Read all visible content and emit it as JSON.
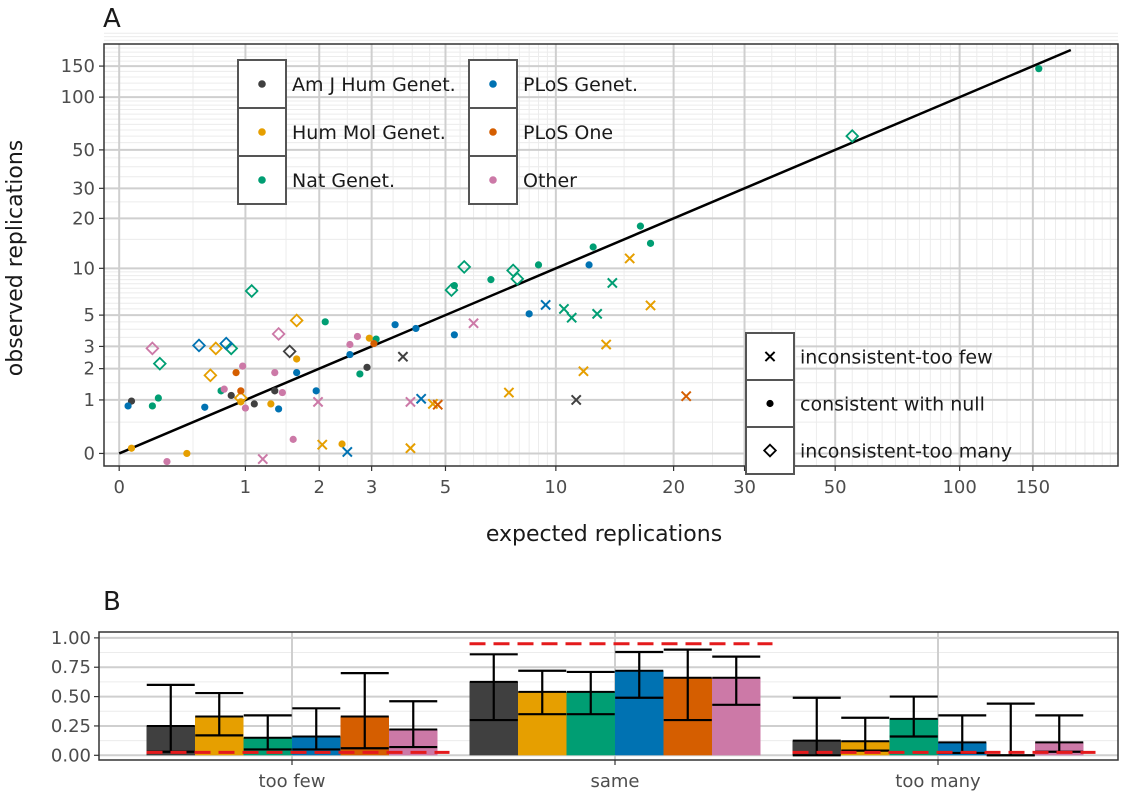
{
  "colors": {
    "Am J Hum Genet.": "#404040",
    "Hum Mol Genet.": "#E69F00",
    "Nat Genet.": "#009E73",
    "PLoS Genet.": "#0072B2",
    "PLoS One": "#D55E00",
    "Other": "#CC79A7",
    "reference": "#E41A1C"
  },
  "chart_data": [
    {
      "panel_label": "A",
      "type": "scatter",
      "xlabel": "expected replications",
      "ylabel": "observed replications",
      "scale": "log1p",
      "xticks": [
        0,
        1,
        2,
        3,
        5,
        10,
        20,
        30,
        50,
        100,
        150
      ],
      "yticks": [
        0,
        1,
        2,
        3,
        5,
        10,
        20,
        30,
        50,
        100,
        150
      ],
      "xlim": [
        -0.08,
        240
      ],
      "ylim": [
        -0.15,
        200
      ],
      "grid": true,
      "reference_line": "y = x",
      "color_legend": [
        "Am J Hum Genet.",
        "Hum Mol Genet.",
        "Nat Genet.",
        "PLoS Genet.",
        "PLoS One",
        "Other"
      ],
      "shape_legend": [
        "inconsistent-too few",
        "consistent with null",
        "inconsistent-too many"
      ],
      "points": [
        {
          "x": 0.07,
          "y": 0.97,
          "group": "Am J Hum Genet.",
          "shape": "consistent with null"
        },
        {
          "x": 0.85,
          "y": 1.12,
          "group": "Am J Hum Genet.",
          "shape": "consistent with null"
        },
        {
          "x": 1.1,
          "y": 0.9,
          "group": "Am J Hum Genet.",
          "shape": "consistent with null"
        },
        {
          "x": 1.35,
          "y": 1.25,
          "group": "Am J Hum Genet.",
          "shape": "consistent with null"
        },
        {
          "x": 2.9,
          "y": 2.05,
          "group": "Am J Hum Genet.",
          "shape": "consistent with null"
        },
        {
          "x": 1.55,
          "y": 2.75,
          "group": "Am J Hum Genet.",
          "shape": "inconsistent-too many"
        },
        {
          "x": 3.75,
          "y": 2.5,
          "group": "Am J Hum Genet.",
          "shape": "inconsistent-too few"
        },
        {
          "x": 11.3,
          "y": 1.0,
          "group": "Am J Hum Genet.",
          "shape": "inconsistent-too few"
        },
        {
          "x": 0.07,
          "y": 0.07,
          "group": "Hum Mol Genet.",
          "shape": "consistent with null"
        },
        {
          "x": 0.45,
          "y": 0.0,
          "group": "Hum Mol Genet.",
          "shape": "consistent with null"
        },
        {
          "x": 0.95,
          "y": 0.95,
          "group": "Hum Mol Genet.",
          "shape": "consistent with null"
        },
        {
          "x": 1.3,
          "y": 0.9,
          "group": "Hum Mol Genet.",
          "shape": "consistent with null"
        },
        {
          "x": 1.65,
          "y": 2.4,
          "group": "Hum Mol Genet.",
          "shape": "consistent with null"
        },
        {
          "x": 2.95,
          "y": 3.45,
          "group": "Hum Mol Genet.",
          "shape": "consistent with null"
        },
        {
          "x": 2.4,
          "y": 0.13,
          "group": "Hum Mol Genet.",
          "shape": "consistent with null"
        },
        {
          "x": 0.65,
          "y": 1.75,
          "group": "Hum Mol Genet.",
          "shape": "inconsistent-too many"
        },
        {
          "x": 0.7,
          "y": 2.9,
          "group": "Hum Mol Genet.",
          "shape": "inconsistent-too many"
        },
        {
          "x": 1.65,
          "y": 4.6,
          "group": "Hum Mol Genet.",
          "shape": "inconsistent-too many"
        },
        {
          "x": 0.95,
          "y": 1.05,
          "group": "Hum Mol Genet.",
          "shape": "inconsistent-too many"
        },
        {
          "x": 2.05,
          "y": 0.12,
          "group": "Hum Mol Genet.",
          "shape": "inconsistent-too few"
        },
        {
          "x": 3.95,
          "y": 0.07,
          "group": "Hum Mol Genet.",
          "shape": "inconsistent-too few"
        },
        {
          "x": 4.6,
          "y": 0.9,
          "group": "Hum Mol Genet.",
          "shape": "inconsistent-too few"
        },
        {
          "x": 7.5,
          "y": 1.2,
          "group": "Hum Mol Genet.",
          "shape": "inconsistent-too few"
        },
        {
          "x": 11.8,
          "y": 1.9,
          "group": "Hum Mol Genet.",
          "shape": "inconsistent-too few"
        },
        {
          "x": 13.5,
          "y": 3.1,
          "group": "Hum Mol Genet.",
          "shape": "inconsistent-too few"
        },
        {
          "x": 15.5,
          "y": 11.5,
          "group": "Hum Mol Genet.",
          "shape": "inconsistent-too few"
        },
        {
          "x": 17.5,
          "y": 5.8,
          "group": "Hum Mol Genet.",
          "shape": "inconsistent-too few"
        },
        {
          "x": 0.2,
          "y": 0.85,
          "group": "Nat Genet.",
          "shape": "consistent with null"
        },
        {
          "x": 0.24,
          "y": 1.05,
          "group": "Nat Genet.",
          "shape": "consistent with null"
        },
        {
          "x": 0.75,
          "y": 1.25,
          "group": "Nat Genet.",
          "shape": "consistent with null"
        },
        {
          "x": 2.1,
          "y": 4.5,
          "group": "Nat Genet.",
          "shape": "consistent with null"
        },
        {
          "x": 2.75,
          "y": 1.8,
          "group": "Nat Genet.",
          "shape": "consistent with null"
        },
        {
          "x": 3.1,
          "y": 3.4,
          "group": "Nat Genet.",
          "shape": "consistent with null"
        },
        {
          "x": 5.3,
          "y": 7.8,
          "group": "Nat Genet.",
          "shape": "consistent with null"
        },
        {
          "x": 6.7,
          "y": 8.5,
          "group": "Nat Genet.",
          "shape": "consistent with null"
        },
        {
          "x": 9.0,
          "y": 10.5,
          "group": "Nat Genet.",
          "shape": "consistent with null"
        },
        {
          "x": 12.5,
          "y": 13.5,
          "group": "Nat Genet.",
          "shape": "consistent with null"
        },
        {
          "x": 16.5,
          "y": 18.0,
          "group": "Nat Genet.",
          "shape": "consistent with null"
        },
        {
          "x": 17.5,
          "y": 14.2,
          "group": "Nat Genet.",
          "shape": "consistent with null"
        },
        {
          "x": 155,
          "y": 145,
          "group": "Nat Genet.",
          "shape": "consistent with null"
        },
        {
          "x": 0.25,
          "y": 2.2,
          "group": "Nat Genet.",
          "shape": "inconsistent-too many"
        },
        {
          "x": 0.85,
          "y": 2.9,
          "group": "Nat Genet.",
          "shape": "inconsistent-too many"
        },
        {
          "x": 1.07,
          "y": 7.2,
          "group": "Nat Genet.",
          "shape": "inconsistent-too many"
        },
        {
          "x": 5.2,
          "y": 7.3,
          "group": "Nat Genet.",
          "shape": "inconsistent-too many"
        },
        {
          "x": 5.65,
          "y": 10.2,
          "group": "Nat Genet.",
          "shape": "inconsistent-too many"
        },
        {
          "x": 7.7,
          "y": 9.7,
          "group": "Nat Genet.",
          "shape": "inconsistent-too many"
        },
        {
          "x": 7.9,
          "y": 8.6,
          "group": "Nat Genet.",
          "shape": "inconsistent-too many"
        },
        {
          "x": 55,
          "y": 60,
          "group": "Nat Genet.",
          "shape": "inconsistent-too many"
        },
        {
          "x": 10.5,
          "y": 5.5,
          "group": "Nat Genet.",
          "shape": "inconsistent-too few"
        },
        {
          "x": 11.0,
          "y": 4.8,
          "group": "Nat Genet.",
          "shape": "inconsistent-too few"
        },
        {
          "x": 12.8,
          "y": 5.1,
          "group": "Nat Genet.",
          "shape": "inconsistent-too few"
        },
        {
          "x": 14.0,
          "y": 8.1,
          "group": "Nat Genet.",
          "shape": "inconsistent-too few"
        },
        {
          "x": 0.05,
          "y": 0.85,
          "group": "PLoS Genet.",
          "shape": "consistent with null"
        },
        {
          "x": 0.6,
          "y": 0.82,
          "group": "PLoS Genet.",
          "shape": "consistent with null"
        },
        {
          "x": 1.4,
          "y": 0.78,
          "group": "PLoS Genet.",
          "shape": "consistent with null"
        },
        {
          "x": 1.65,
          "y": 1.85,
          "group": "PLoS Genet.",
          "shape": "consistent with null"
        },
        {
          "x": 1.95,
          "y": 1.25,
          "group": "PLoS Genet.",
          "shape": "consistent with null"
        },
        {
          "x": 2.55,
          "y": 2.6,
          "group": "PLoS Genet.",
          "shape": "consistent with null"
        },
        {
          "x": 3.55,
          "y": 4.3,
          "group": "PLoS Genet.",
          "shape": "consistent with null"
        },
        {
          "x": 4.1,
          "y": 4.05,
          "group": "PLoS Genet.",
          "shape": "consistent with null"
        },
        {
          "x": 5.3,
          "y": 3.65,
          "group": "PLoS Genet.",
          "shape": "consistent with null"
        },
        {
          "x": 8.5,
          "y": 5.1,
          "group": "PLoS Genet.",
          "shape": "consistent with null"
        },
        {
          "x": 12.2,
          "y": 10.5,
          "group": "PLoS Genet.",
          "shape": "consistent with null"
        },
        {
          "x": 0.55,
          "y": 3.05,
          "group": "PLoS Genet.",
          "shape": "inconsistent-too many"
        },
        {
          "x": 0.8,
          "y": 3.15,
          "group": "PLoS Genet.",
          "shape": "inconsistent-too many"
        },
        {
          "x": 2.5,
          "y": 0.02,
          "group": "PLoS Genet.",
          "shape": "inconsistent-too few"
        },
        {
          "x": 4.25,
          "y": 1.03,
          "group": "PLoS Genet.",
          "shape": "inconsistent-too few"
        },
        {
          "x": 9.4,
          "y": 5.85,
          "group": "PLoS Genet.",
          "shape": "inconsistent-too few"
        },
        {
          "x": 0.9,
          "y": 1.85,
          "group": "PLoS One",
          "shape": "consistent with null"
        },
        {
          "x": 0.95,
          "y": 1.25,
          "group": "PLoS One",
          "shape": "consistent with null"
        },
        {
          "x": 3.05,
          "y": 3.15,
          "group": "PLoS One",
          "shape": "consistent with null"
        },
        {
          "x": 4.75,
          "y": 0.88,
          "group": "PLoS One",
          "shape": "inconsistent-too few"
        },
        {
          "x": 21.5,
          "y": 1.1,
          "group": "PLoS One",
          "shape": "inconsistent-too few"
        },
        {
          "x": 0.3,
          "y": -0.1,
          "group": "Other",
          "shape": "consistent with null"
        },
        {
          "x": 0.78,
          "y": 1.3,
          "group": "Other",
          "shape": "consistent with null"
        },
        {
          "x": 1.0,
          "y": 0.8,
          "group": "Other",
          "shape": "consistent with null"
        },
        {
          "x": 0.97,
          "y": 2.1,
          "group": "Other",
          "shape": "consistent with null"
        },
        {
          "x": 1.35,
          "y": 1.85,
          "group": "Other",
          "shape": "consistent with null"
        },
        {
          "x": 1.45,
          "y": 1.2,
          "group": "Other",
          "shape": "consistent with null"
        },
        {
          "x": 1.6,
          "y": 0.2,
          "group": "Other",
          "shape": "consistent with null"
        },
        {
          "x": 2.55,
          "y": 3.1,
          "group": "Other",
          "shape": "consistent with null"
        },
        {
          "x": 2.7,
          "y": 3.55,
          "group": "Other",
          "shape": "consistent with null"
        },
        {
          "x": 0.2,
          "y": 2.9,
          "group": "Other",
          "shape": "inconsistent-too many"
        },
        {
          "x": 1.4,
          "y": 3.7,
          "group": "Other",
          "shape": "inconsistent-too many"
        },
        {
          "x": 1.2,
          "y": -0.07,
          "group": "Other",
          "shape": "inconsistent-too few"
        },
        {
          "x": 1.98,
          "y": 0.95,
          "group": "Other",
          "shape": "inconsistent-too few"
        },
        {
          "x": 3.95,
          "y": 0.95,
          "group": "Other",
          "shape": "inconsistent-too few"
        },
        {
          "x": 6.0,
          "y": 4.4,
          "group": "Other",
          "shape": "inconsistent-too few"
        }
      ]
    },
    {
      "panel_label": "B",
      "type": "bar",
      "categories": [
        "too few",
        "same",
        "too many"
      ],
      "yticks": [
        "0.00",
        "0.25",
        "0.50",
        "0.75",
        "1.00"
      ],
      "ylim": [
        -0.04,
        1.05
      ],
      "grid": true,
      "series": [
        {
          "name": "Am J Hum Genet.",
          "values": [
            0.25,
            0.625,
            0.125
          ],
          "lower": [
            0.03,
            0.3,
            0.0
          ],
          "upper": [
            0.6,
            0.86,
            0.49
          ]
        },
        {
          "name": "Hum Mol Genet.",
          "values": [
            0.33,
            0.54,
            0.12
          ],
          "lower": [
            0.17,
            0.35,
            0.04
          ],
          "upper": [
            0.53,
            0.72,
            0.32
          ]
        },
        {
          "name": "Nat Genet.",
          "values": [
            0.15,
            0.54,
            0.31
          ],
          "lower": [
            0.05,
            0.35,
            0.16
          ],
          "upper": [
            0.34,
            0.71,
            0.5
          ]
        },
        {
          "name": "PLoS Genet.",
          "values": [
            0.16,
            0.72,
            0.11
          ],
          "lower": [
            0.05,
            0.49,
            0.02
          ],
          "upper": [
            0.4,
            0.88,
            0.34
          ]
        },
        {
          "name": "PLoS One",
          "values": [
            0.33,
            0.66,
            0.0
          ],
          "lower": [
            0.06,
            0.3,
            0.0
          ],
          "upper": [
            0.7,
            0.9,
            0.44
          ]
        },
        {
          "name": "Other",
          "values": [
            0.22,
            0.66,
            0.11
          ],
          "lower": [
            0.07,
            0.43,
            0.03
          ],
          "upper": [
            0.46,
            0.84,
            0.34
          ]
        }
      ],
      "reference_levels": [
        0.025,
        0.95,
        0.025
      ]
    }
  ]
}
